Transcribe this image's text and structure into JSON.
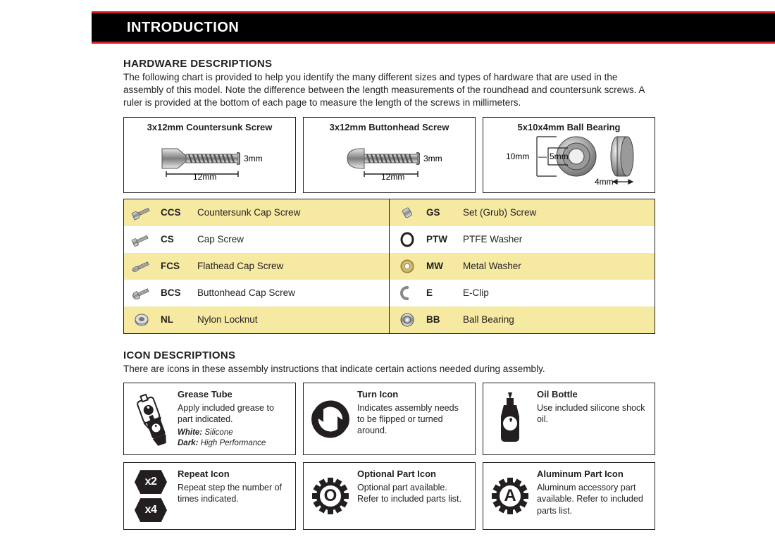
{
  "header": {
    "title": "INTRODUCTION"
  },
  "hardware": {
    "title": "HARDWARE DESCRIPTIONS",
    "text": "The following chart is provided to help you identify the many different sizes and types of hardware that are used in the assembly of this model. Note the difference between the length measurements of the roundhead and countersunk screws. A ruler is provided at the bottom of each page to measure the length of the screws in millimeters.",
    "samples": {
      "countersunk": {
        "title": "3x12mm Countersunk Screw",
        "diam": "3mm",
        "length": "12mm"
      },
      "buttonhead": {
        "title": "3x12mm Buttonhead Screw",
        "diam": "3mm",
        "length": "12mm"
      },
      "bearing": {
        "title": "5x10x4mm Ball Bearing",
        "outer": "10mm",
        "inner": "5mm",
        "width": "4mm"
      }
    },
    "legend_left": [
      {
        "code": "CCS",
        "name": "Countersunk Cap Screw"
      },
      {
        "code": "CS",
        "name": "Cap Screw"
      },
      {
        "code": "FCS",
        "name": "Flathead Cap Screw"
      },
      {
        "code": "BCS",
        "name": "Buttonhead Cap Screw"
      },
      {
        "code": "NL",
        "name": "Nylon Locknut"
      }
    ],
    "legend_right": [
      {
        "code": "GS",
        "name": "Set (Grub) Screw"
      },
      {
        "code": "PTW",
        "name": "PTFE Washer"
      },
      {
        "code": "MW",
        "name": "Metal Washer"
      },
      {
        "code": "E",
        "name": "E-Clip"
      },
      {
        "code": "BB",
        "name": "Ball Bearing"
      }
    ]
  },
  "icons": {
    "title": "ICON DESCRIPTIONS",
    "text": "There are icons in these assembly instructions that indicate certain actions needed during assembly.",
    "row1": {
      "grease": {
        "title": "Grease Tube",
        "desc": "Apply included grease to part indicated.",
        "note_white_label": "White:",
        "note_white_val": "Silicone",
        "note_dark_label": "Dark:",
        "note_dark_val": "High Performance"
      },
      "turn": {
        "title": "Turn Icon",
        "desc": "Indicates assembly needs to be flipped or turned around."
      },
      "oil": {
        "title": "Oil Bottle",
        "desc": "Use included silicone shock oil."
      }
    },
    "row2": {
      "repeat": {
        "title": "Repeat Icon",
        "desc": "Repeat step the number of times indicated.",
        "x2": "x2",
        "x4": "x4"
      },
      "optional": {
        "title": "Optional Part Icon",
        "desc": "Optional part available. Refer to included parts list.",
        "letter": "O"
      },
      "aluminum": {
        "title": "Aluminum Part Icon",
        "desc": "Aluminum accessory part available. Refer to included parts list.",
        "letter": "A"
      }
    }
  },
  "colors": {
    "accent_red": "#d01f27",
    "legend_alt": "#f6eaa3",
    "ink": "#231f20"
  }
}
